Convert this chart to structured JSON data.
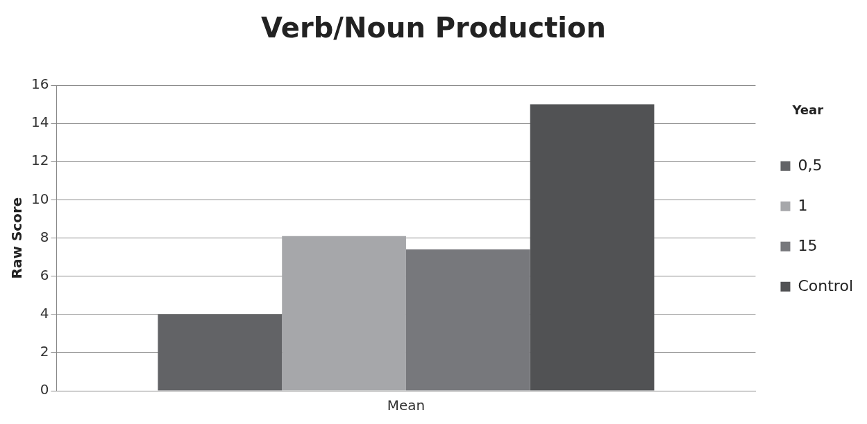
{
  "chart_data": {
    "type": "bar",
    "title": "Verb/Noun Production",
    "ylabel": "Raw Score",
    "legend_title": "Year",
    "categories": [
      "Mean"
    ],
    "series": [
      {
        "name": "0,5",
        "color": "#626366",
        "values": [
          4.0
        ]
      },
      {
        "name": "1",
        "color": "#a6a7aa",
        "values": [
          8.1
        ]
      },
      {
        "name": "15",
        "color": "#77787c",
        "values": [
          7.4
        ]
      },
      {
        "name": "Control",
        "color": "#515254",
        "values": [
          15.0
        ]
      }
    ],
    "ylim": [
      0,
      16
    ],
    "yticks": [
      0,
      2,
      4,
      6,
      8,
      10,
      12,
      14,
      16
    ],
    "grid": "y",
    "legend": "right"
  }
}
